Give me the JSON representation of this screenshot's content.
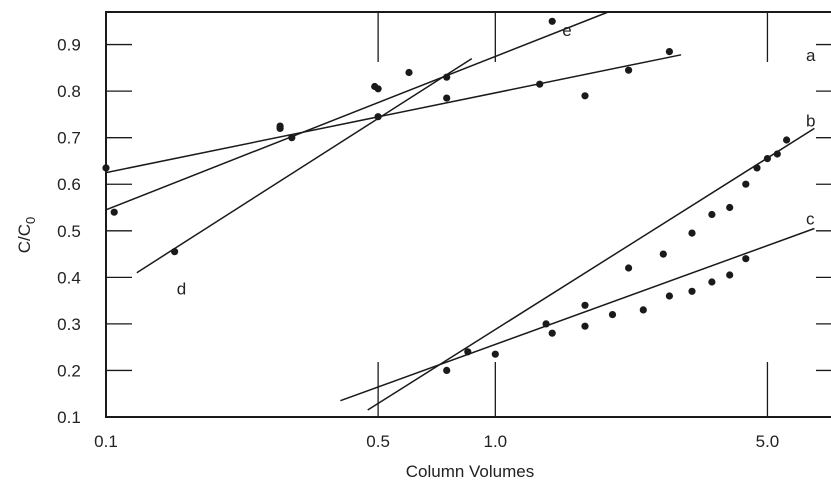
{
  "chart_data": {
    "type": "scatter",
    "xlabel": "Column Volumes",
    "ylabel": "C/C",
    "ylabel_subscript": "0",
    "x_scale": "log",
    "xlim": [
      0.1,
      7.5
    ],
    "ylim": [
      0.1,
      0.97
    ],
    "x_ticks": [
      {
        "value": 0.1,
        "label": "0.1"
      },
      {
        "value": 0.5,
        "label": "0.5"
      },
      {
        "value": 1.0,
        "label": "1.0"
      },
      {
        "value": 5.0,
        "label": "5.0"
      }
    ],
    "y_ticks": [
      {
        "value": 0.1,
        "label": "0.1"
      },
      {
        "value": 0.2,
        "label": "0.2"
      },
      {
        "value": 0.3,
        "label": "0.3"
      },
      {
        "value": 0.4,
        "label": "0.4"
      },
      {
        "value": 0.5,
        "label": "0.5"
      },
      {
        "value": 0.6,
        "label": "0.6"
      },
      {
        "value": 0.7,
        "label": "0.7"
      },
      {
        "value": 0.8,
        "label": "0.8"
      },
      {
        "value": 0.9,
        "label": "0.9"
      }
    ],
    "grid": false,
    "series": [
      {
        "name": "a",
        "line": [
          [
            0.1,
            0.625
          ],
          [
            3.0,
            0.878
          ]
        ],
        "points": [
          [
            0.1,
            0.635
          ],
          [
            0.28,
            0.72
          ],
          [
            0.5,
            0.745
          ],
          [
            0.75,
            0.785
          ],
          [
            1.3,
            0.815
          ],
          [
            1.7,
            0.79
          ],
          [
            2.2,
            0.845
          ],
          [
            2.8,
            0.885
          ]
        ]
      },
      {
        "name": "b",
        "line": [
          [
            0.47,
            0.115
          ],
          [
            6.6,
            0.72
          ]
        ],
        "points": [
          [
            0.75,
            0.2
          ],
          [
            0.85,
            0.24
          ],
          [
            1.35,
            0.3
          ],
          [
            1.7,
            0.34
          ],
          [
            2.2,
            0.42
          ],
          [
            2.7,
            0.45
          ],
          [
            3.2,
            0.495
          ],
          [
            3.6,
            0.535
          ],
          [
            4.0,
            0.55
          ],
          [
            4.4,
            0.6
          ],
          [
            4.7,
            0.635
          ],
          [
            5.0,
            0.655
          ],
          [
            5.3,
            0.665
          ],
          [
            5.6,
            0.695
          ]
        ]
      },
      {
        "name": "c",
        "line": [
          [
            0.4,
            0.135
          ],
          [
            6.6,
            0.505
          ]
        ],
        "points": [
          [
            1.0,
            0.235
          ],
          [
            1.4,
            0.28
          ],
          [
            1.7,
            0.295
          ],
          [
            2.0,
            0.32
          ],
          [
            2.4,
            0.33
          ],
          [
            2.8,
            0.36
          ],
          [
            3.2,
            0.37
          ],
          [
            3.6,
            0.39
          ],
          [
            4.0,
            0.405
          ],
          [
            4.4,
            0.44
          ]
        ]
      },
      {
        "name": "d",
        "line": [
          [
            0.12,
            0.41
          ],
          [
            0.87,
            0.87
          ]
        ],
        "points": [
          [
            0.15,
            0.455
          ],
          [
            0.3,
            0.7
          ],
          [
            0.5,
            0.805
          ],
          [
            0.6,
            0.84
          ],
          [
            0.75,
            0.83
          ]
        ]
      },
      {
        "name": "e",
        "line": [
          [
            0.1,
            0.545
          ],
          [
            1.95,
            0.97
          ]
        ],
        "points": [
          [
            0.105,
            0.54
          ],
          [
            0.28,
            0.725
          ],
          [
            0.49,
            0.81
          ],
          [
            1.4,
            0.95
          ]
        ]
      }
    ]
  }
}
